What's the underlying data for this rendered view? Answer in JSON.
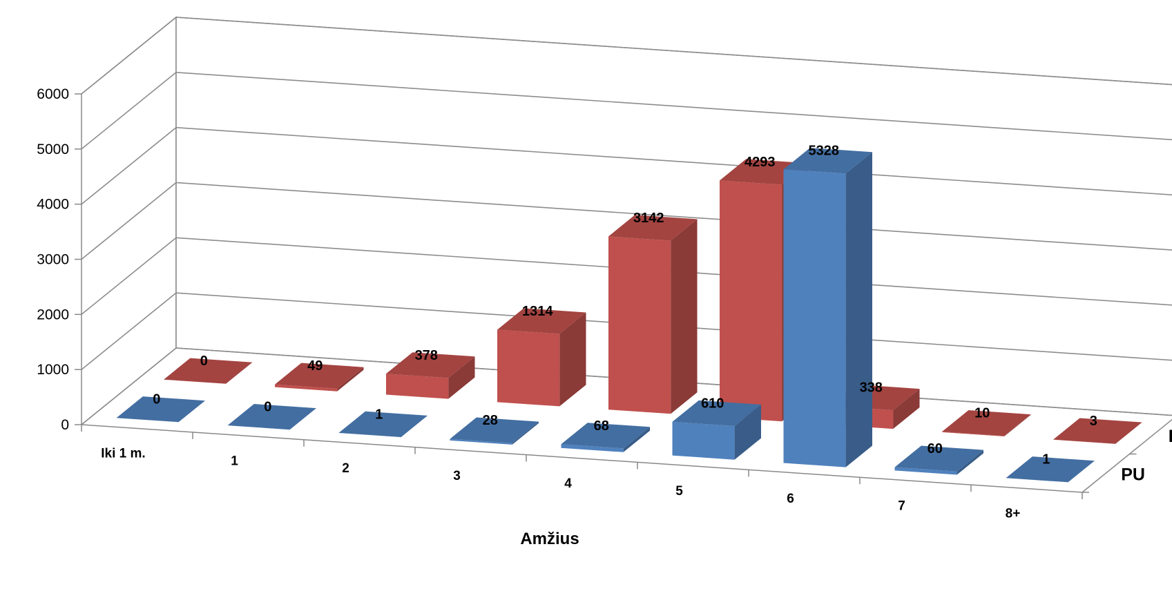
{
  "chart_data": {
    "type": "bar",
    "style": "3d-column",
    "categories": [
      "Iki 1 m.",
      "1",
      "2",
      "3",
      "4",
      "5",
      "6",
      "7",
      "8+"
    ],
    "series": [
      {
        "name": "IU",
        "values": [
          0,
          49,
          378,
          1314,
          3142,
          4293,
          338,
          10,
          3
        ],
        "color": "#c0504d"
      },
      {
        "name": "PU",
        "values": [
          0,
          0,
          1,
          28,
          68,
          610,
          5328,
          60,
          1
        ],
        "color": "#4f81bd"
      }
    ],
    "xlabel": "Amžius",
    "ylabel": "",
    "ylim": [
      0,
      6000
    ],
    "yticks": [
      0,
      1000,
      2000,
      3000,
      4000,
      5000,
      6000
    ],
    "grid": true,
    "legend": "none"
  }
}
